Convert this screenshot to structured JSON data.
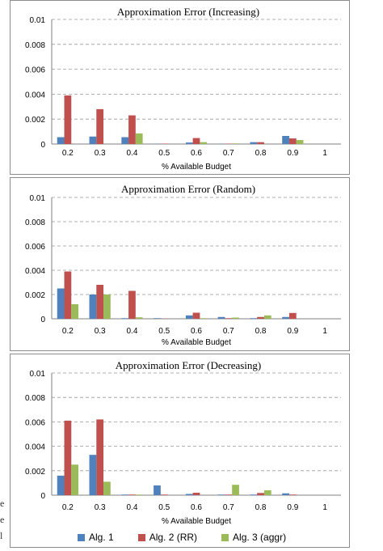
{
  "chart_data": [
    {
      "type": "bar",
      "title": "Approximation Error (Increasing)",
      "xlabel": "% Available Budget",
      "ylabel": "",
      "ylim": [
        0,
        0.01
      ],
      "yticks": [
        "0",
        "0.002",
        "0.004",
        "0.006",
        "0.008",
        "0.01"
      ],
      "categories": [
        "0.2",
        "0.3",
        "0.4",
        "0.5",
        "0.6",
        "0.7",
        "0.8",
        "0.9",
        "1"
      ],
      "series": [
        {
          "name": "Alg. 1",
          "color": "#4f81bd",
          "values": [
            0.00055,
            0.0006,
            0.00055,
            3e-05,
            0.00012,
            3e-05,
            0.00015,
            0.00065,
            0
          ]
        },
        {
          "name": "Alg. 2 (RR)",
          "color": "#c0504d",
          "values": [
            0.0039,
            0.0028,
            0.0023,
            3e-05,
            0.00048,
            3e-05,
            0.00015,
            0.00045,
            0
          ]
        },
        {
          "name": "Alg. 3 (aggr)",
          "color": "#9bbb59",
          "values": [
            0,
            0,
            0.00085,
            0,
            0.00015,
            5e-05,
            0,
            0.00032,
            0
          ]
        }
      ],
      "grid": true
    },
    {
      "type": "bar",
      "title": "Approximation Error (Random)",
      "xlabel": "% Available Budget",
      "ylabel": "",
      "ylim": [
        0,
        0.01
      ],
      "yticks": [
        "0",
        "0.002",
        "0.004",
        "0.006",
        "0.008",
        "0.01"
      ],
      "categories": [
        "0.2",
        "0.3",
        "0.4",
        "0.5",
        "0.6",
        "0.7",
        "0.8",
        "0.9",
        "1"
      ],
      "series": [
        {
          "name": "Alg. 1",
          "color": "#4f81bd",
          "values": [
            0.0025,
            0.002,
            5e-05,
            5e-05,
            0.00028,
            0.00015,
            5e-05,
            0.00015,
            0
          ]
        },
        {
          "name": "Alg. 2 (RR)",
          "color": "#c0504d",
          "values": [
            0.0039,
            0.0028,
            0.0023,
            2e-05,
            0.0005,
            5e-05,
            0.00015,
            0.00048,
            0
          ]
        },
        {
          "name": "Alg. 3 (aggr)",
          "color": "#9bbb59",
          "values": [
            0.0012,
            0.002,
            0.00012,
            0,
            5e-05,
            0.0001,
            0.00028,
            0,
            0
          ]
        }
      ],
      "grid": true
    },
    {
      "type": "bar",
      "title": "Approximation Error (Decreasing)",
      "xlabel": "% Available Budget",
      "ylabel": "",
      "ylim": [
        0,
        0.01
      ],
      "yticks": [
        "0",
        "0.002",
        "0.004",
        "0.006",
        "0.008",
        "0.01"
      ],
      "categories": [
        "0.2",
        "0.3",
        "0.4",
        "0.5",
        "0.6",
        "0.7",
        "0.8",
        "0.9",
        "1"
      ],
      "series": [
        {
          "name": "Alg. 1",
          "color": "#4f81bd",
          "values": [
            0.0016,
            0.0033,
            5e-05,
            0.0008,
            0.0001,
            5e-05,
            5e-05,
            0.00015,
            0
          ]
        },
        {
          "name": "Alg. 2 (RR)",
          "color": "#c0504d",
          "values": [
            0.0061,
            0.0062,
            5e-05,
            5e-05,
            0.0002,
            5e-05,
            0.00018,
            5e-05,
            0
          ]
        },
        {
          "name": "Alg. 3 (aggr)",
          "color": "#9bbb59",
          "values": [
            0.0025,
            0.0011,
            5e-05,
            0,
            0,
            0.00085,
            0.0004,
            0,
            0
          ]
        }
      ],
      "grid": true
    }
  ],
  "legend": {
    "items": [
      {
        "label": "Alg. 1",
        "color": "#4f81bd"
      },
      {
        "label": "Alg. 2 (RR)",
        "color": "#c0504d"
      },
      {
        "label": "Alg. 3 (aggr)",
        "color": "#9bbb59"
      }
    ]
  },
  "side_fragments": [
    "e",
    "e",
    "l"
  ]
}
